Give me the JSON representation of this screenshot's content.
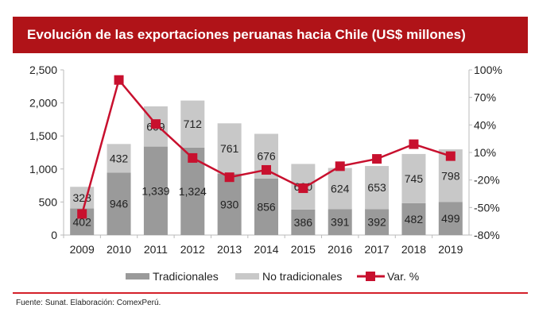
{
  "chart_data": {
    "type": "bar",
    "title": "Evolución de las exportaciones peruanas hacia Chile (US$ millones)",
    "categories": [
      "2009",
      "2010",
      "2011",
      "2012",
      "2013",
      "2014",
      "2015",
      "2016",
      "2017",
      "2018",
      "2019"
    ],
    "series": [
      {
        "name": "Tradicionales",
        "type": "bar",
        "stacked": true,
        "color": "#9a9a9a",
        "values": [
          402,
          946,
          1339,
          1324,
          930,
          856,
          386,
          391,
          392,
          482,
          499
        ]
      },
      {
        "name": "No tradicionales",
        "type": "bar",
        "stacked": true,
        "color": "#c8c8c8",
        "values": [
          328,
          432,
          609,
          712,
          761,
          676,
          690,
          624,
          653,
          745,
          798
        ]
      },
      {
        "name": "Var. %",
        "type": "line",
        "axis": "right",
        "color": "#c8102e",
        "values": [
          -57,
          89,
          41,
          4,
          -17,
          -9,
          -29,
          -5,
          3,
          19,
          6
        ]
      }
    ],
    "left_axis": {
      "ylim": [
        0,
        2500
      ],
      "ticks": [
        "0",
        "500",
        "1,000",
        "1,500",
        "2,000",
        "2,500"
      ]
    },
    "right_axis": {
      "ylim": [
        -80,
        100
      ],
      "ticks": [
        "-80%",
        "-50%",
        "-20%",
        "10%",
        "40%",
        "70%",
        "100%"
      ]
    },
    "bar_labels": {
      "Tradicionales": [
        "402",
        "946",
        "1,339",
        "1,324",
        "930",
        "856",
        "386",
        "391",
        "392",
        "482",
        "499"
      ],
      "No tradicionales": [
        "328",
        "432",
        "609",
        "712",
        "761",
        "676",
        "690",
        "624",
        "653",
        "745",
        "798"
      ]
    },
    "legend_placement": "bottom"
  },
  "footer": "Fuente: Sunat. Elaboración: ComexPerú."
}
